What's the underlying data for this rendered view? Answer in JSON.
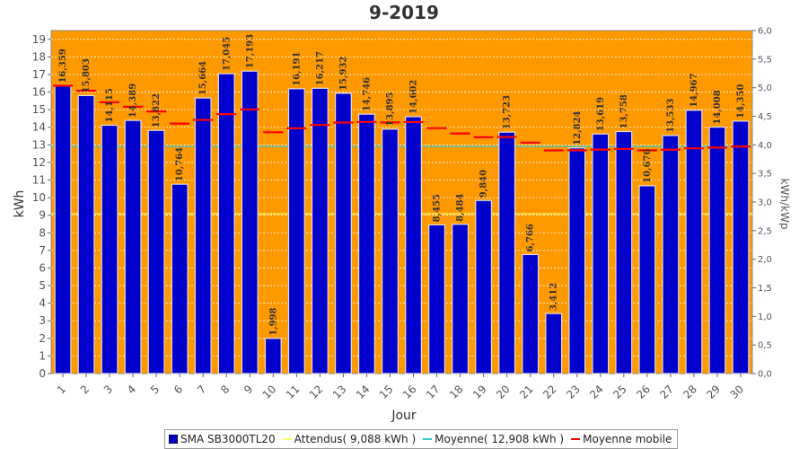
{
  "chart_data": {
    "type": "bar",
    "title": "9-2019",
    "xlabel": "Jour",
    "ylabel": "kWh",
    "y2label": "kWh/kWp",
    "ylim": [
      0,
      19.5
    ],
    "y2lim": [
      0,
      6.0
    ],
    "yticks": [
      "0",
      "1",
      "2",
      "3",
      "4",
      "5",
      "6",
      "7",
      "8",
      "9",
      "10",
      "11",
      "12",
      "13",
      "14",
      "15",
      "16",
      "17",
      "18",
      "19"
    ],
    "y2ticks": [
      "0,0",
      "0,5",
      "1,0",
      "1,5",
      "2,0",
      "2,5",
      "3,0",
      "3,5",
      "4,0",
      "4,5",
      "5,0",
      "5,5",
      "6,0"
    ],
    "categories": [
      "1",
      "2",
      "3",
      "4",
      "5",
      "6",
      "7",
      "8",
      "9",
      "10",
      "11",
      "12",
      "13",
      "14",
      "15",
      "16",
      "17",
      "18",
      "19",
      "20",
      "21",
      "22",
      "23",
      "24",
      "25",
      "26",
      "27",
      "28",
      "29",
      "30"
    ],
    "series": [
      {
        "name": "SMA SB3000TL20",
        "type": "bar",
        "color": "#0000cc",
        "values": [
          16.359,
          15.803,
          14.115,
          14.389,
          13.822,
          10.764,
          15.664,
          17.045,
          17.193,
          1.998,
          16.191,
          16.217,
          15.932,
          14.746,
          13.895,
          14.602,
          8.455,
          8.484,
          9.84,
          13.723,
          6.766,
          3.412,
          12.824,
          13.619,
          13.758,
          10.676,
          13.533,
          14.967,
          14.008,
          14.35
        ],
        "labels": [
          "16,359",
          "15,803",
          "14,115",
          "14,389",
          "13,822",
          "10,764",
          "15,664",
          "17,045",
          "17,193",
          "1,998",
          "16,191",
          "16,217",
          "15,932",
          "14,746",
          "13,895",
          "14,602",
          "8,455",
          "8,484",
          "9,840",
          "13,723",
          "6,766",
          "3,412",
          "12,824",
          "13,619",
          "13,758",
          "10,676",
          "13,533",
          "14,967",
          "14,008",
          "14,350"
        ]
      },
      {
        "name": "Attendus( 9,088 kWh )",
        "type": "line",
        "color": "#ffff66",
        "value": 9.088
      },
      {
        "name": "Moyenne( 12,908 kWh )",
        "type": "line",
        "color": "#33cccc",
        "value": 12.908
      },
      {
        "name": "Moyenne mobile",
        "type": "step",
        "color": "#ff0000",
        "values": [
          16.359,
          16.081,
          15.426,
          15.167,
          14.898,
          14.209,
          14.417,
          14.746,
          15.018,
          13.716,
          13.941,
          14.13,
          14.268,
          14.302,
          14.275,
          14.296,
          13.953,
          13.649,
          13.433,
          13.447,
          13.128,
          12.686,
          12.692,
          12.731,
          12.771,
          12.691,
          12.722,
          12.803,
          12.845,
          12.908
        ]
      }
    ],
    "grid": true,
    "background": "#ff9900",
    "legend_position": "bottom"
  }
}
